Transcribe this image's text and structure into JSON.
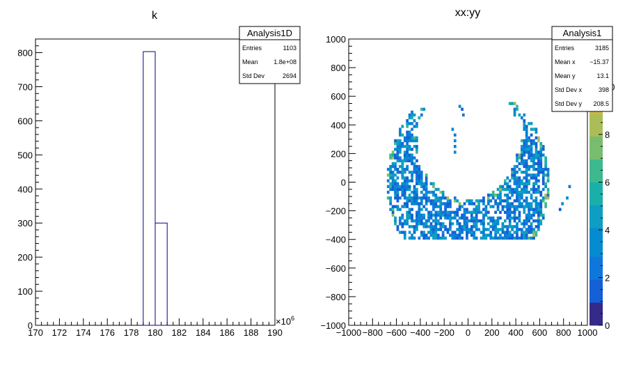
{
  "chart_data": [
    {
      "type": "bar",
      "title": "k",
      "xlabel": "",
      "ylabel": "",
      "x_exponent_label": "×10",
      "x_exponent_power": "6",
      "xlim": [
        170,
        190
      ],
      "ylim": [
        0,
        840
      ],
      "x_ticks": [
        170,
        172,
        174,
        176,
        178,
        180,
        182,
        184,
        186,
        188,
        190
      ],
      "x_tick_labels": [
        "170",
        "172",
        "174",
        "176",
        "178",
        "180",
        "182",
        "184",
        "186",
        "188",
        "190"
      ],
      "y_ticks": [
        0,
        100,
        200,
        300,
        400,
        500,
        600,
        700,
        800
      ],
      "y_tick_labels": [
        "0",
        "100",
        "200",
        "300",
        "400",
        "500",
        "600",
        "700",
        "800"
      ],
      "bins": [
        {
          "x0": 179,
          "x1": 180,
          "value": 803
        },
        {
          "x0": 180,
          "x1": 181,
          "value": 300
        }
      ],
      "line_color": "#00008b",
      "stats_box": {
        "title": "Analysis1D",
        "rows": [
          {
            "label": "Entries",
            "value": "1103"
          },
          {
            "label": "Mean",
            "value": "1.8e+08"
          },
          {
            "label": "Std Dev",
            "value": "2694"
          }
        ]
      }
    },
    {
      "type": "heatmap",
      "title": "xx:yy",
      "xlabel": "",
      "ylabel": "",
      "xlim": [
        -1000,
        1000
      ],
      "ylim": [
        -1000,
        1000
      ],
      "x_ticks": [
        -1000,
        -800,
        -600,
        -400,
        -200,
        0,
        200,
        400,
        600,
        800,
        1000
      ],
      "x_tick_labels": [
        "−1000",
        "−800",
        "−600",
        "−400",
        "−200",
        "0",
        "200",
        "400",
        "600",
        "800",
        "1000"
      ],
      "y_ticks": [
        -1000,
        -800,
        -600,
        -400,
        -200,
        0,
        200,
        400,
        600,
        800,
        1000
      ],
      "y_tick_labels": [
        "−1000",
        "−800",
        "−600",
        "−400",
        "−200",
        "0",
        "200",
        "400",
        "600",
        "800",
        "1000"
      ],
      "bin_size": 20,
      "zlim": [
        0,
        12
      ],
      "z_ticks": [
        0,
        2,
        4,
        6,
        8,
        10
      ],
      "z_tick_labels": [
        "0",
        "2",
        "4",
        "6",
        "8",
        "10"
      ],
      "colormap": [
        "#352a87",
        "#1560d6",
        "#0f77db",
        "#058bd0",
        "#0e9ec4",
        "#1bafaa",
        "#3eb98f",
        "#78bd6f",
        "#abbd58",
        "#d4bb43",
        "#f5c52c",
        "#f9fb0e"
      ],
      "shape": {
        "type": "crescent",
        "outer_radius": 680,
        "inner_radius": 420,
        "inner_center_y": 300
      },
      "highlight_band": {
        "center_y": 60,
        "band": 30,
        "x_range": [
          -200,
          200
        ]
      },
      "outer_points": [
        [
          -80,
          520
        ],
        [
          -60,
          500
        ],
        [
          -50,
          460
        ],
        [
          -140,
          360
        ],
        [
          -120,
          320
        ],
        [
          -120,
          280
        ],
        [
          -120,
          240
        ],
        [
          -120,
          200
        ],
        [
          -300,
          -80
        ],
        [
          -80,
          -400
        ],
        [
          -20,
          -400
        ],
        [
          360,
          -400
        ],
        [
          400,
          -380
        ],
        [
          320,
          -400
        ],
        [
          820,
          -120
        ],
        [
          780,
          -160
        ],
        [
          760,
          -200
        ],
        [
          840,
          -40
        ]
      ],
      "stats_box": {
        "title": "Analysis1",
        "rows": [
          {
            "label": "Entries",
            "value": "3185"
          },
          {
            "label": "Mean x",
            "value": "−15.37"
          },
          {
            "label": "Mean y",
            "value": "13.1"
          },
          {
            "label": "Std Dev x",
            "value": "398"
          },
          {
            "label": "Std Dev y",
            "value": "208.5"
          }
        ]
      }
    }
  ]
}
